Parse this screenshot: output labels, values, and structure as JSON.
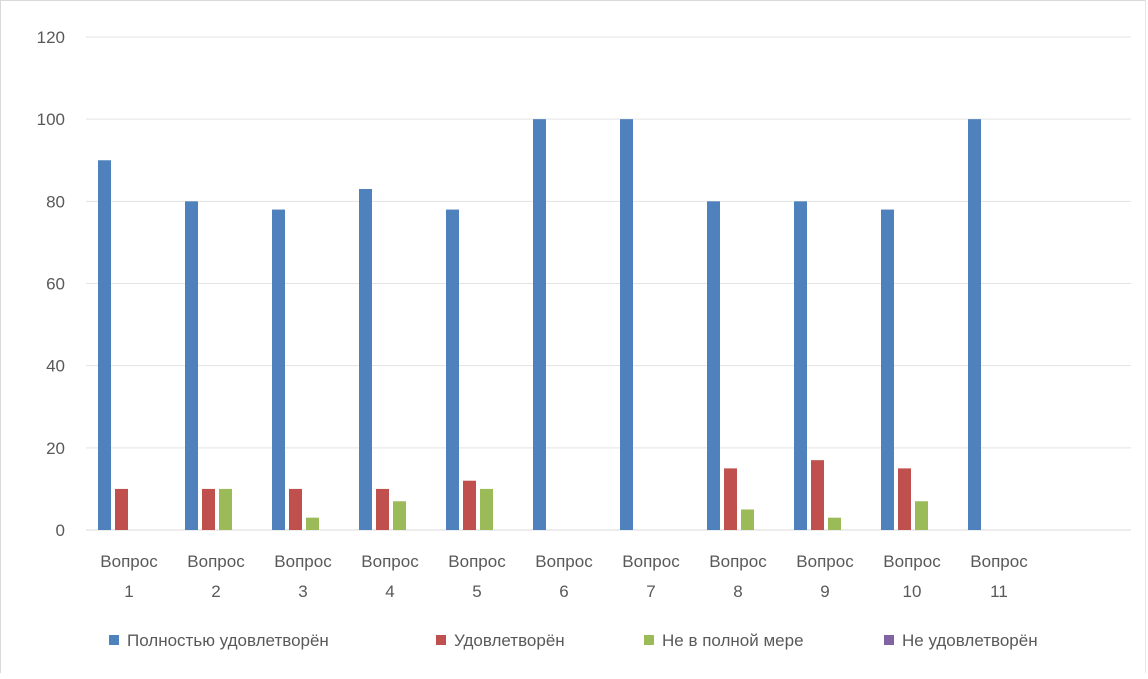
{
  "chart_data": {
    "type": "bar",
    "title": "",
    "xlabel": "",
    "ylabel": "",
    "ylim": [
      0,
      120
    ],
    "yticks": [
      0,
      20,
      40,
      60,
      80,
      100,
      120
    ],
    "grid": true,
    "legend_position": "bottom",
    "categories": [
      [
        "Вопрос",
        "1"
      ],
      [
        "Вопрос",
        "2"
      ],
      [
        "Вопрос",
        "3"
      ],
      [
        "Вопрос",
        "4"
      ],
      [
        "Вопрос",
        "5"
      ],
      [
        "Вопрос",
        "6"
      ],
      [
        "Вопрос",
        "7"
      ],
      [
        "Вопрос",
        "8"
      ],
      [
        "Вопрос",
        "9"
      ],
      [
        "Вопрос",
        "10"
      ],
      [
        "Вопрос",
        "11"
      ]
    ],
    "series": [
      {
        "name": "Полностью удовлетворён",
        "color": "#4f81bd",
        "values": [
          90,
          80,
          78,
          83,
          78,
          100,
          100,
          80,
          80,
          78,
          100
        ]
      },
      {
        "name": "Удовлетворён",
        "color": "#c0504d",
        "values": [
          10,
          10,
          10,
          10,
          12,
          0,
          0,
          15,
          17,
          15,
          0
        ]
      },
      {
        "name": "Не в полной мере",
        "color": "#9bbb59",
        "values": [
          0,
          10,
          3,
          7,
          10,
          0,
          0,
          5,
          3,
          7,
          0
        ]
      },
      {
        "name": "Не удовлетворён",
        "color": "#8064a2",
        "values": [
          0,
          0,
          0,
          0,
          0,
          0,
          0,
          0,
          0,
          0,
          0
        ]
      }
    ]
  }
}
